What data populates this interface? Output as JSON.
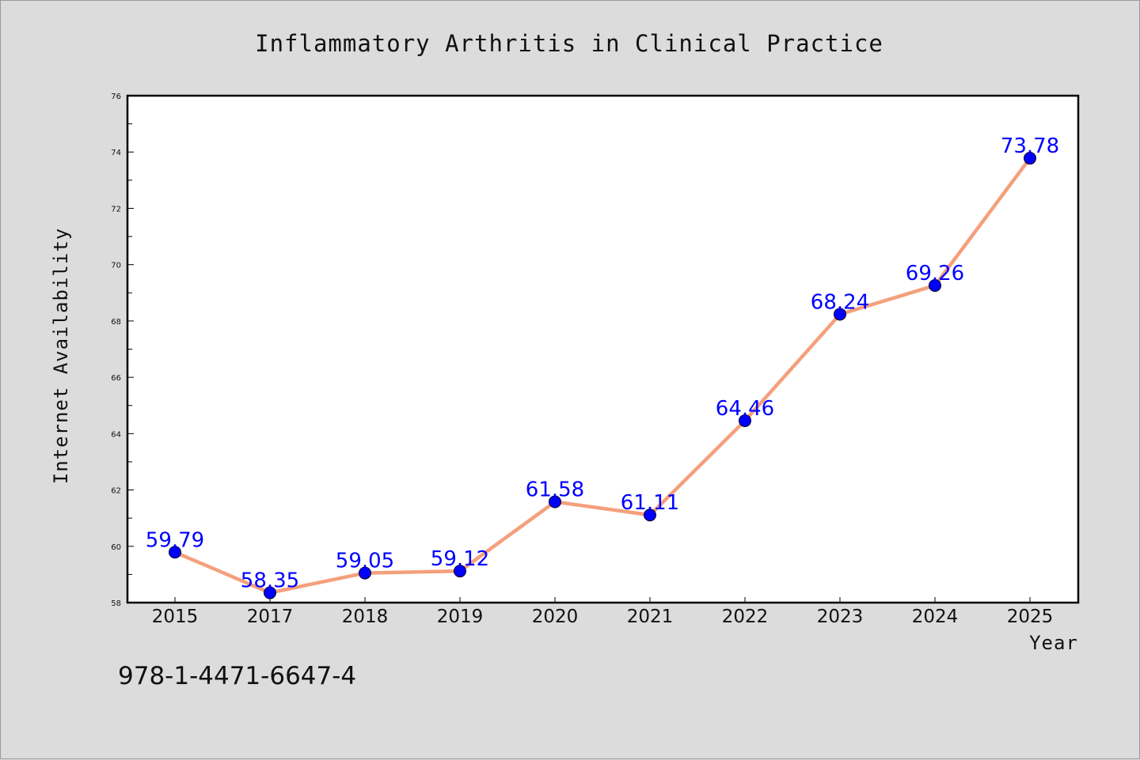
{
  "chart_data": {
    "type": "line",
    "title": "Inflammatory Arthritis in Clinical Practice",
    "xlabel": "Year",
    "ylabel": "Internet Availability",
    "categories": [
      "2015",
      "2017",
      "2018",
      "2019",
      "2020",
      "2021",
      "2022",
      "2023",
      "2024",
      "2025"
    ],
    "series": [
      {
        "values": [
          59.79,
          58.35,
          59.05,
          59.12,
          61.58,
          61.11,
          64.46,
          68.24,
          69.26,
          73.78
        ],
        "labels": [
          "59.79",
          "58.35",
          "59.05",
          "59.12",
          "61.58",
          "61.11",
          "64.46",
          "68.24",
          "69.26",
          "73.78"
        ],
        "line_color": "#f4a07c",
        "marker_color": "#0000ff"
      }
    ],
    "ylim": [
      58,
      76
    ],
    "yticks": [
      58,
      60,
      62,
      64,
      66,
      68,
      70,
      72,
      74,
      76
    ],
    "yticks_minor_step": 1,
    "grid": false,
    "legend": "none"
  },
  "footer": {
    "isbn": "978-1-4471-6647-4"
  }
}
